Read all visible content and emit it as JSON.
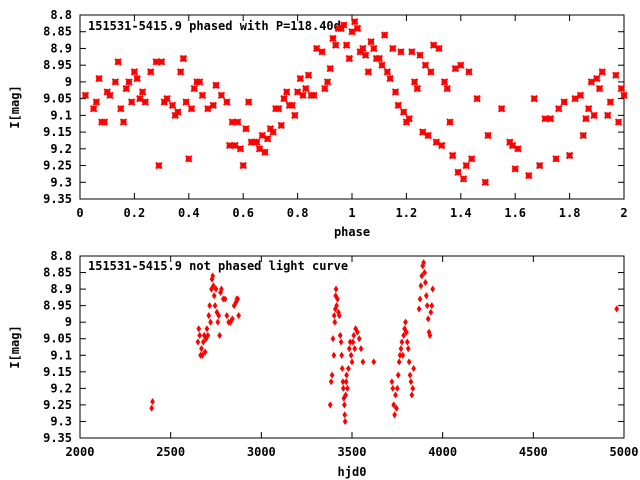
{
  "chart_data": [
    {
      "type": "scatter",
      "title": "151531-5415.9 phased with P=118.40d",
      "xlabel": "phase",
      "ylabel": "I[mag]",
      "xlim": [
        0,
        2
      ],
      "ylim": [
        9.35,
        8.8
      ],
      "y_inverted": true,
      "xticks": [
        "0",
        "0.2",
        "0.4",
        "0.6",
        "0.8",
        "1",
        "1.2",
        "1.4",
        "1.6",
        "1.8",
        "2"
      ],
      "xtick_values": [
        0,
        0.2,
        0.4,
        0.6,
        0.8,
        1,
        1.2,
        1.4,
        1.6,
        1.8,
        2
      ],
      "yticks": [
        "8.8",
        "8.85",
        "8.9",
        "8.95",
        "9",
        "9.05",
        "9.1",
        "9.15",
        "9.2",
        "9.25",
        "9.3",
        "9.35"
      ],
      "ytick_values": [
        8.8,
        8.85,
        8.9,
        8.95,
        9.0,
        9.05,
        9.1,
        9.15,
        9.2,
        9.25,
        9.3,
        9.35
      ],
      "marker": "star",
      "color": "#ff0000",
      "grid": false,
      "points": [
        [
          0.02,
          9.04
        ],
        [
          0.05,
          9.08
        ],
        [
          0.06,
          9.06
        ],
        [
          0.07,
          8.99
        ],
        [
          0.08,
          9.12
        ],
        [
          0.09,
          9.12
        ],
        [
          0.1,
          9.03
        ],
        [
          0.11,
          9.04
        ],
        [
          0.13,
          9.0
        ],
        [
          0.14,
          8.94
        ],
        [
          0.15,
          9.08
        ],
        [
          0.16,
          9.12
        ],
        [
          0.17,
          9.02
        ],
        [
          0.18,
          9.0
        ],
        [
          0.19,
          9.06
        ],
        [
          0.2,
          8.97
        ],
        [
          0.21,
          8.99
        ],
        [
          0.22,
          9.05
        ],
        [
          0.23,
          9.03
        ],
        [
          0.24,
          9.06
        ],
        [
          0.26,
          8.97
        ],
        [
          0.28,
          8.94
        ],
        [
          0.29,
          9.25
        ],
        [
          0.3,
          8.94
        ],
        [
          0.31,
          9.06
        ],
        [
          0.32,
          9.05
        ],
        [
          0.34,
          9.07
        ],
        [
          0.35,
          9.1
        ],
        [
          0.36,
          9.09
        ],
        [
          0.37,
          8.97
        ],
        [
          0.38,
          8.93
        ],
        [
          0.39,
          9.06
        ],
        [
          0.4,
          9.23
        ],
        [
          0.41,
          9.08
        ],
        [
          0.42,
          9.02
        ],
        [
          0.43,
          9.0
        ],
        [
          0.44,
          9.0
        ],
        [
          0.45,
          9.04
        ],
        [
          0.47,
          9.08
        ],
        [
          0.49,
          9.07
        ],
        [
          0.5,
          9.01
        ],
        [
          0.52,
          9.04
        ],
        [
          0.54,
          9.06
        ],
        [
          0.55,
          9.19
        ],
        [
          0.56,
          9.12
        ],
        [
          0.57,
          9.19
        ],
        [
          0.58,
          9.12
        ],
        [
          0.59,
          9.2
        ],
        [
          0.6,
          9.25
        ],
        [
          0.61,
          9.14
        ],
        [
          0.62,
          9.06
        ],
        [
          0.63,
          9.18
        ],
        [
          0.64,
          9.18
        ],
        [
          0.65,
          9.18
        ],
        [
          0.66,
          9.2
        ],
        [
          0.67,
          9.16
        ],
        [
          0.68,
          9.21
        ],
        [
          0.69,
          9.17
        ],
        [
          0.7,
          9.14
        ],
        [
          0.71,
          9.15
        ],
        [
          0.72,
          9.08
        ],
        [
          0.73,
          9.08
        ],
        [
          0.74,
          9.13
        ],
        [
          0.75,
          9.05
        ],
        [
          0.76,
          9.03
        ],
        [
          0.77,
          9.07
        ],
        [
          0.78,
          9.07
        ],
        [
          0.79,
          9.1
        ],
        [
          0.8,
          9.03
        ],
        [
          0.81,
          8.99
        ],
        [
          0.82,
          9.04
        ],
        [
          0.83,
          9.02
        ],
        [
          0.84,
          8.98
        ],
        [
          0.85,
          9.04
        ],
        [
          0.86,
          9.04
        ],
        [
          0.87,
          8.9
        ],
        [
          0.89,
          8.91
        ],
        [
          0.9,
          9.02
        ],
        [
          0.91,
          9.0
        ],
        [
          0.92,
          8.96
        ],
        [
          0.93,
          8.87
        ],
        [
          0.94,
          8.89
        ],
        [
          0.95,
          8.84
        ],
        [
          0.96,
          8.84
        ],
        [
          0.97,
          8.83
        ],
        [
          0.98,
          8.89
        ],
        [
          0.99,
          8.93
        ],
        [
          1.0,
          8.85
        ],
        [
          1.01,
          8.82
        ],
        [
          1.02,
          8.84
        ],
        [
          1.03,
          8.91
        ],
        [
          1.04,
          8.9
        ],
        [
          1.05,
          8.92
        ],
        [
          1.06,
          8.97
        ],
        [
          1.07,
          8.88
        ],
        [
          1.08,
          8.9
        ],
        [
          1.09,
          8.93
        ],
        [
          1.1,
          8.93
        ],
        [
          1.11,
          8.95
        ],
        [
          1.12,
          8.86
        ],
        [
          1.13,
          8.97
        ],
        [
          1.14,
          8.99
        ],
        [
          1.15,
          8.9
        ],
        [
          1.16,
          9.03
        ],
        [
          1.17,
          9.07
        ],
        [
          1.18,
          8.91
        ],
        [
          1.19,
          9.09
        ],
        [
          1.2,
          9.12
        ],
        [
          1.21,
          9.11
        ],
        [
          1.22,
          8.91
        ],
        [
          1.23,
          9.0
        ],
        [
          1.24,
          9.02
        ],
        [
          1.25,
          8.92
        ],
        [
          1.26,
          9.15
        ],
        [
          1.27,
          8.95
        ],
        [
          1.28,
          9.16
        ],
        [
          1.29,
          8.97
        ],
        [
          1.3,
          8.89
        ],
        [
          1.31,
          9.18
        ],
        [
          1.32,
          8.9
        ],
        [
          1.33,
          9.19
        ],
        [
          1.34,
          9.0
        ],
        [
          1.35,
          9.02
        ],
        [
          1.36,
          9.12
        ],
        [
          1.37,
          9.22
        ],
        [
          1.38,
          8.96
        ],
        [
          1.39,
          9.27
        ],
        [
          1.4,
          8.95
        ],
        [
          1.41,
          9.29
        ],
        [
          1.42,
          9.25
        ],
        [
          1.43,
          8.97
        ],
        [
          1.44,
          9.23
        ],
        [
          1.46,
          9.05
        ],
        [
          1.49,
          9.3
        ],
        [
          1.5,
          9.16
        ],
        [
          1.55,
          9.08
        ],
        [
          1.58,
          9.18
        ],
        [
          1.59,
          9.19
        ],
        [
          1.6,
          9.26
        ],
        [
          1.61,
          9.2
        ],
        [
          1.65,
          9.28
        ],
        [
          1.67,
          9.05
        ],
        [
          1.69,
          9.25
        ],
        [
          1.71,
          9.11
        ],
        [
          1.73,
          9.11
        ],
        [
          1.75,
          9.23
        ],
        [
          1.76,
          9.08
        ],
        [
          1.78,
          9.06
        ],
        [
          1.8,
          9.22
        ],
        [
          1.82,
          9.05
        ],
        [
          1.84,
          9.04
        ],
        [
          1.85,
          9.16
        ],
        [
          1.86,
          9.11
        ],
        [
          1.87,
          9.08
        ],
        [
          1.88,
          9.0
        ],
        [
          1.89,
          9.1
        ],
        [
          1.9,
          8.99
        ],
        [
          1.91,
          9.02
        ],
        [
          1.92,
          8.97
        ],
        [
          1.94,
          9.1
        ],
        [
          1.95,
          9.06
        ],
        [
          1.97,
          8.98
        ],
        [
          1.98,
          9.12
        ],
        [
          1.99,
          9.02
        ],
        [
          2.0,
          9.04
        ]
      ]
    },
    {
      "type": "scatter",
      "title": "151531-5415.9 not phased light curve",
      "xlabel": "hjd0",
      "ylabel": "I[mag]",
      "xlim": [
        2000,
        5000
      ],
      "ylim": [
        9.35,
        8.8
      ],
      "y_inverted": true,
      "xticks": [
        "2000",
        "2500",
        "3000",
        "3500",
        "4000",
        "4500",
        "5000"
      ],
      "xtick_values": [
        2000,
        2500,
        3000,
        3500,
        4000,
        4500,
        5000
      ],
      "yticks": [
        "8.8",
        "8.85",
        "8.9",
        "8.95",
        "9",
        "9.05",
        "9.1",
        "9.15",
        "9.2",
        "9.25",
        "9.3",
        "9.35"
      ],
      "ytick_values": [
        8.8,
        8.85,
        8.9,
        8.95,
        9.0,
        9.05,
        9.1,
        9.15,
        9.2,
        9.25,
        9.3,
        9.35
      ],
      "marker": "diamond",
      "color": "#ff0000",
      "grid": false,
      "points": [
        [
          2395,
          9.26
        ],
        [
          2400,
          9.24
        ],
        [
          2650,
          9.06
        ],
        [
          2655,
          9.02
        ],
        [
          2660,
          9.04
        ],
        [
          2665,
          9.1
        ],
        [
          2670,
          9.08
        ],
        [
          2675,
          9.1
        ],
        [
          2680,
          9.06
        ],
        [
          2685,
          9.04
        ],
        [
          2690,
          9.09
        ],
        [
          2695,
          9.05
        ],
        [
          2700,
          9.02
        ],
        [
          2705,
          9.04
        ],
        [
          2710,
          8.98
        ],
        [
          2715,
          8.95
        ],
        [
          2720,
          9.0
        ],
        [
          2725,
          8.9
        ],
        [
          2728,
          8.87
        ],
        [
          2732,
          8.86
        ],
        [
          2736,
          8.89
        ],
        [
          2740,
          8.92
        ],
        [
          2745,
          8.95
        ],
        [
          2750,
          8.9
        ],
        [
          2755,
          8.97
        ],
        [
          2760,
          9.0
        ],
        [
          2765,
          8.98
        ],
        [
          2770,
          9.04
        ],
        [
          2775,
          8.91
        ],
        [
          2780,
          8.9
        ],
        [
          2790,
          8.93
        ],
        [
          2800,
          8.93
        ],
        [
          2810,
          8.98
        ],
        [
          2820,
          9.0
        ],
        [
          2830,
          9.0
        ],
        [
          2840,
          8.99
        ],
        [
          2850,
          8.95
        ],
        [
          2860,
          8.94
        ],
        [
          2865,
          8.93
        ],
        [
          2870,
          8.93
        ],
        [
          2875,
          8.98
        ],
        [
          3380,
          9.25
        ],
        [
          3385,
          9.18
        ],
        [
          3390,
          9.16
        ],
        [
          3395,
          9.05
        ],
        [
          3400,
          9.1
        ],
        [
          3402,
          8.98
        ],
        [
          3405,
          9.0
        ],
        [
          3408,
          8.96
        ],
        [
          3410,
          8.92
        ],
        [
          3412,
          8.9
        ],
        [
          3415,
          8.95
        ],
        [
          3420,
          8.93
        ],
        [
          3425,
          8.97
        ],
        [
          3430,
          8.98
        ],
        [
          3435,
          9.04
        ],
        [
          3440,
          9.06
        ],
        [
          3443,
          9.1
        ],
        [
          3446,
          9.14
        ],
        [
          3450,
          9.18
        ],
        [
          3452,
          9.2
        ],
        [
          3455,
          9.23
        ],
        [
          3458,
          9.25
        ],
        [
          3460,
          9.28
        ],
        [
          3462,
          9.3
        ],
        [
          3465,
          9.22
        ],
        [
          3468,
          9.18
        ],
        [
          3470,
          9.16
        ],
        [
          3475,
          9.2
        ],
        [
          3480,
          9.14
        ],
        [
          3485,
          9.08
        ],
        [
          3490,
          9.06
        ],
        [
          3495,
          9.1
        ],
        [
          3500,
          9.12
        ],
        [
          3505,
          9.06
        ],
        [
          3510,
          9.04
        ],
        [
          3515,
          9.08
        ],
        [
          3520,
          9.02
        ],
        [
          3530,
          9.03
        ],
        [
          3540,
          9.05
        ],
        [
          3550,
          9.08
        ],
        [
          3560,
          9.12
        ],
        [
          3620,
          9.12
        ],
        [
          3720,
          9.18
        ],
        [
          3725,
          9.2
        ],
        [
          3730,
          9.25
        ],
        [
          3735,
          9.28
        ],
        [
          3740,
          9.22
        ],
        [
          3745,
          9.26
        ],
        [
          3750,
          9.2
        ],
        [
          3755,
          9.16
        ],
        [
          3760,
          9.12
        ],
        [
          3765,
          9.1
        ],
        [
          3770,
          9.08
        ],
        [
          3775,
          9.06
        ],
        [
          3780,
          9.1
        ],
        [
          3785,
          9.04
        ],
        [
          3790,
          9.02
        ],
        [
          3795,
          9.0
        ],
        [
          3800,
          9.03
        ],
        [
          3805,
          9.06
        ],
        [
          3810,
          9.08
        ],
        [
          3815,
          9.12
        ],
        [
          3820,
          9.16
        ],
        [
          3825,
          9.18
        ],
        [
          3830,
          9.22
        ],
        [
          3835,
          9.2
        ],
        [
          3840,
          9.14
        ],
        [
          3870,
          8.96
        ],
        [
          3875,
          8.93
        ],
        [
          3880,
          8.89
        ],
        [
          3885,
          8.86
        ],
        [
          3890,
          8.83
        ],
        [
          3895,
          8.82
        ],
        [
          3900,
          8.85
        ],
        [
          3905,
          8.88
        ],
        [
          3910,
          8.92
        ],
        [
          3915,
          8.95
        ],
        [
          3920,
          8.99
        ],
        [
          3925,
          9.03
        ],
        [
          3930,
          9.04
        ],
        [
          3935,
          8.97
        ],
        [
          3940,
          8.95
        ],
        [
          3945,
          8.9
        ],
        [
          4960,
          8.96
        ]
      ]
    }
  ]
}
